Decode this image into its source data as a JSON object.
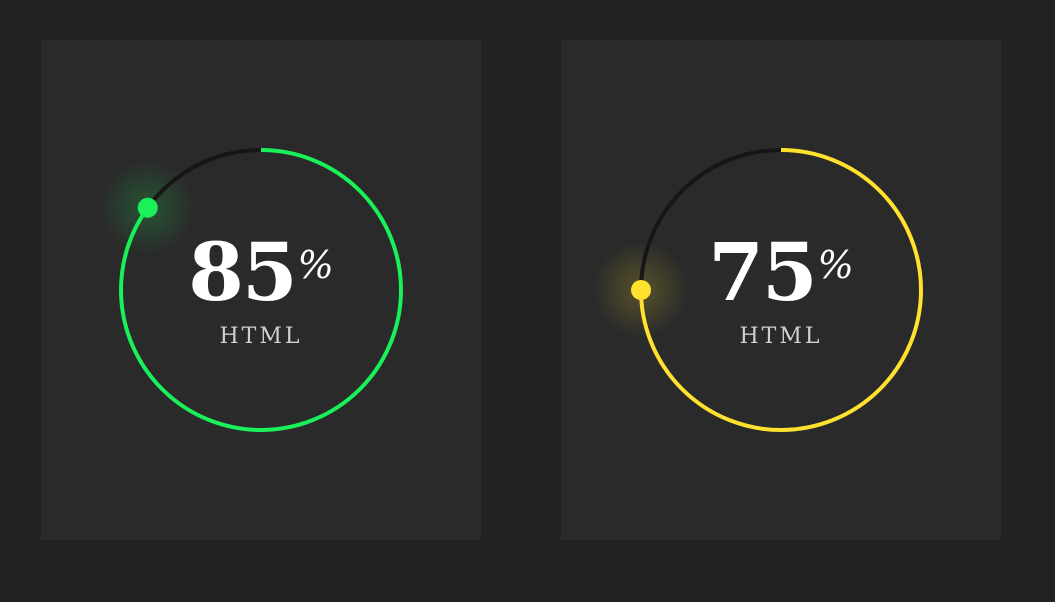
{
  "gauges": [
    {
      "value_text": "85",
      "percent_sign": "%",
      "label": "HTML",
      "progress": 0.85,
      "color": "#19f05a"
    },
    {
      "value_text": "75",
      "percent_sign": "%",
      "label": "HTML",
      "progress": 0.75,
      "color": "#ffe12e"
    }
  ],
  "track_color": "#161616",
  "card_color": "#2a2a2a",
  "background_color": "#222222"
}
